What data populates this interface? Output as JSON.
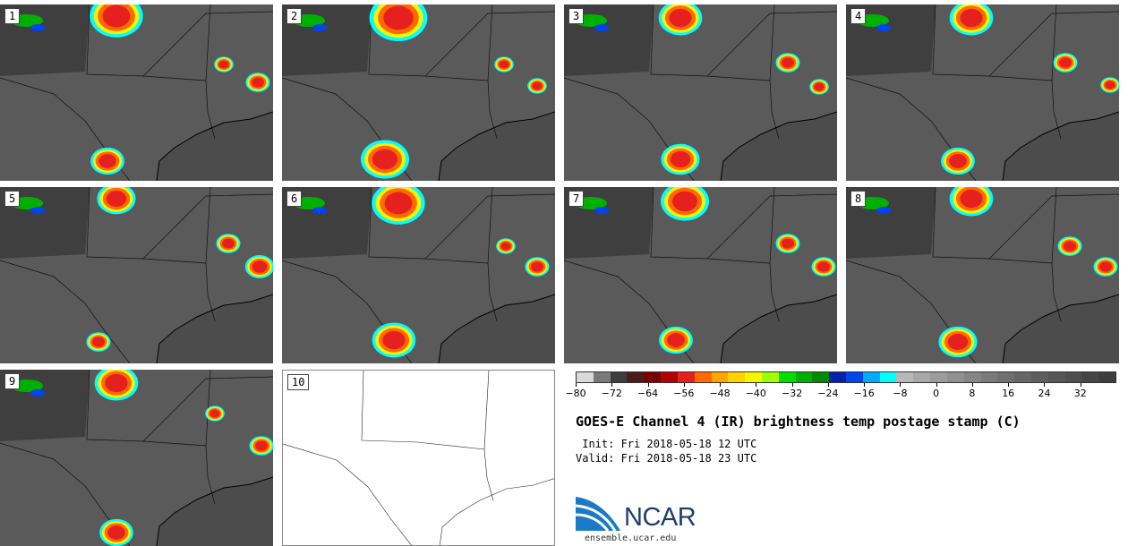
{
  "panels": [
    {
      "label": "1"
    },
    {
      "label": "2"
    },
    {
      "label": "3"
    },
    {
      "label": "4"
    },
    {
      "label": "5"
    },
    {
      "label": "6"
    },
    {
      "label": "7"
    },
    {
      "label": "8"
    },
    {
      "label": "9"
    },
    {
      "label": "10"
    }
  ],
  "colorbar": {
    "colors": [
      "#d9d9d9",
      "#7a7a7a",
      "#3d3d3d",
      "#4a1d1d",
      "#7a0000",
      "#b30000",
      "#e61f1f",
      "#ff6a00",
      "#ffa500",
      "#ffd200",
      "#f5f500",
      "#9fff00",
      "#00e000",
      "#00b000",
      "#008a00",
      "#0022aa",
      "#0044ee",
      "#00aaff",
      "#00ffff",
      "#b8b8b8",
      "#a8a8a8",
      "#9c9c9c",
      "#909090",
      "#858585",
      "#7a7a7a",
      "#707070",
      "#666666",
      "#5e5e5e",
      "#565656",
      "#4e4e4e",
      "#464646",
      "#3e3e3e"
    ],
    "tick_labels": [
      "−80",
      "−72",
      "−64",
      "−56",
      "−48",
      "−40",
      "−32",
      "−24",
      "−16",
      "−8",
      "0",
      "8",
      "16",
      "24",
      "32"
    ],
    "range": [
      -80,
      40
    ]
  },
  "title": "GOES-E Channel 4 (IR) brightness temp postage stamp (C)",
  "init": " Init: Fri 2018-05-18 12 UTC",
  "valid": "Valid: Fri 2018-05-18 23 UTC",
  "logo_text": "NCAR",
  "site": "ensemble.ucar.edu"
}
